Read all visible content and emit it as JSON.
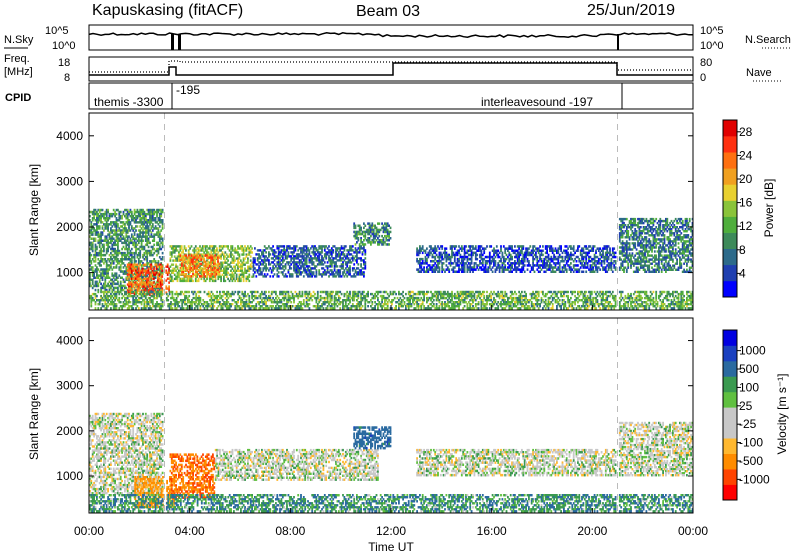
{
  "header": {
    "station": "Kapuskasing (fitACF)",
    "beam": "Beam 03",
    "date": "25/Jun/2019"
  },
  "top_panels": {
    "nsky_label": "N.Sky",
    "nsky_ticks": [
      "10^5",
      "10^0"
    ],
    "nsearch_label": "N.Search",
    "nsearch_ticks": [
      "10^5",
      "10^0"
    ],
    "freq_label": [
      "Freq.",
      "[MHz]"
    ],
    "freq_ticks": [
      "18",
      "8"
    ],
    "nave_label": "Nave",
    "nave_ticks": [
      "80",
      "0"
    ],
    "cpid_label": "CPID",
    "cpid_segments": [
      {
        "name": "themis -3300",
        "start_hour": 0.0,
        "end_hour": 3.0
      },
      {
        "name": "-195",
        "start_hour": 3.0,
        "end_hour": 21.0
      },
      {
        "name": "interleavesound -197",
        "start_hour": 21.0,
        "end_hour": 24.0
      }
    ]
  },
  "x_axis": {
    "label": "Time UT",
    "ticks": [
      "00:00",
      "04:00",
      "08:00",
      "12:00",
      "16:00",
      "20:00",
      "00:00"
    ]
  },
  "chart_data": [
    {
      "type": "heatmap",
      "title": "",
      "xlabel": "Time UT",
      "ylabel": "Slant Range [km]",
      "ylim": [
        180,
        4500
      ],
      "xlim_hours": [
        0,
        24
      ],
      "y_ticks": [
        1000,
        2000,
        3000,
        4000
      ],
      "colorbar": {
        "label": "Power [dB]",
        "ticks": [
          "4",
          "8",
          "12",
          "16",
          "20",
          "24",
          "28"
        ],
        "range": [
          0,
          30
        ],
        "colors": [
          "#0000ff",
          "#1f3fb0",
          "#2c6a8a",
          "#3d8a5a",
          "#4fae3c",
          "#8ac43a",
          "#e8d030",
          "#f0a020",
          "#ff7010",
          "#ff3010",
          "#e00000"
        ]
      },
      "regions": [
        {
          "t0": 0.0,
          "t1": 3.0,
          "r0": 600,
          "r1": 2400,
          "level": 10
        },
        {
          "t0": 1.5,
          "t1": 3.2,
          "r0": 500,
          "r1": 1200,
          "level": 24
        },
        {
          "t0": 3.2,
          "t1": 6.5,
          "r0": 800,
          "r1": 1600,
          "level": 14
        },
        {
          "t0": 3.6,
          "t1": 5.2,
          "r0": 900,
          "r1": 1400,
          "level": 22
        },
        {
          "t0": 6.5,
          "t1": 11.0,
          "r0": 900,
          "r1": 1600,
          "level": 6
        },
        {
          "t0": 10.5,
          "t1": 12.0,
          "r0": 1600,
          "r1": 2100,
          "level": 9
        },
        {
          "t0": 13.0,
          "t1": 21.0,
          "r0": 1000,
          "r1": 1600,
          "level": 5
        },
        {
          "t0": 21.0,
          "t1": 24.0,
          "r0": 1000,
          "r1": 2200,
          "level": 8
        },
        {
          "t0": 0.0,
          "t1": 24.0,
          "r0": 200,
          "r1": 600,
          "level": 12
        }
      ],
      "gaps_hours": [
        3.0,
        21.0
      ]
    },
    {
      "type": "heatmap",
      "title": "",
      "xlabel": "Time UT",
      "ylabel": "Slant Range [km]",
      "ylim": [
        180,
        4500
      ],
      "xlim_hours": [
        0,
        24
      ],
      "y_ticks": [
        1000,
        2000,
        3000,
        4000
      ],
      "colorbar": {
        "label": "Velocity [m s⁻¹]",
        "ticks": [
          "1000",
          "500",
          "100",
          "25",
          "-25",
          "-100",
          "-500",
          "-1000"
        ],
        "range": [
          -1000,
          1000
        ],
        "colors": [
          "#ff0000",
          "#ff4400",
          "#ff8c00",
          "#ffb830",
          "#c8c8c8",
          "#c8c8c8",
          "#60c040",
          "#3a9a50",
          "#2a6aa0",
          "#1a40c0",
          "#0000e0"
        ]
      },
      "regions": [
        {
          "t0": 0.0,
          "t1": 3.0,
          "r0": 600,
          "r1": 2400,
          "level": 0
        },
        {
          "t0": 1.8,
          "t1": 3.4,
          "r0": 300,
          "r1": 1000,
          "level": -120
        },
        {
          "t0": 3.2,
          "t1": 5.0,
          "r0": 500,
          "r1": 1500,
          "level": -200
        },
        {
          "t0": 5.0,
          "t1": 11.5,
          "r0": 900,
          "r1": 1600,
          "level": 0
        },
        {
          "t0": 10.5,
          "t1": 12.0,
          "r0": 1600,
          "r1": 2100,
          "level": 150
        },
        {
          "t0": 13.0,
          "t1": 21.0,
          "r0": 1000,
          "r1": 1600,
          "level": 0
        },
        {
          "t0": 21.0,
          "t1": 24.0,
          "r0": 1000,
          "r1": 2200,
          "level": 0
        },
        {
          "t0": 0.0,
          "t1": 24.0,
          "r0": 200,
          "r1": 600,
          "level": 80
        }
      ],
      "gaps_hours": [
        3.0,
        21.0
      ]
    }
  ]
}
